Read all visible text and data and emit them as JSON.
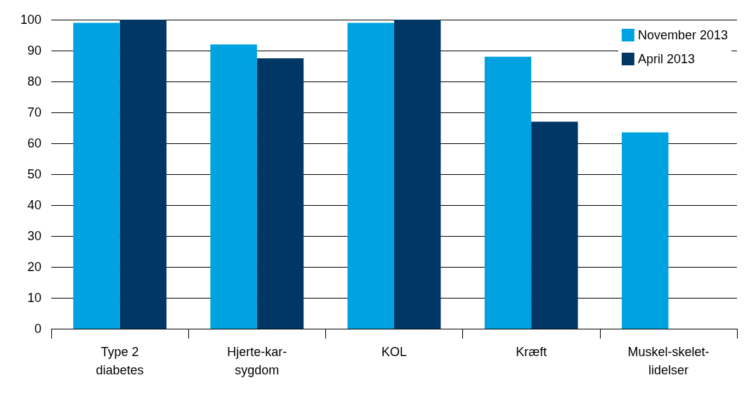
{
  "chart_data": {
    "type": "bar",
    "categories": [
      "Type 2\ndiabetes",
      "Hjerte-kar-\nsygdom",
      "KOL",
      "Kræft",
      "Muskel-skelet-\nlidelser"
    ],
    "series": [
      {
        "name": "November 2013",
        "color": "#00a3e0",
        "values": [
          99,
          92,
          99,
          88,
          63.5
        ]
      },
      {
        "name": "April 2013",
        "color": "#003764",
        "values": [
          100,
          87.5,
          100,
          67,
          null
        ]
      }
    ],
    "ylim": [
      0,
      100
    ],
    "yticks": [
      0,
      10,
      20,
      30,
      40,
      50,
      60,
      70,
      80,
      90,
      100
    ],
    "grid": "y",
    "legend": "top right"
  }
}
